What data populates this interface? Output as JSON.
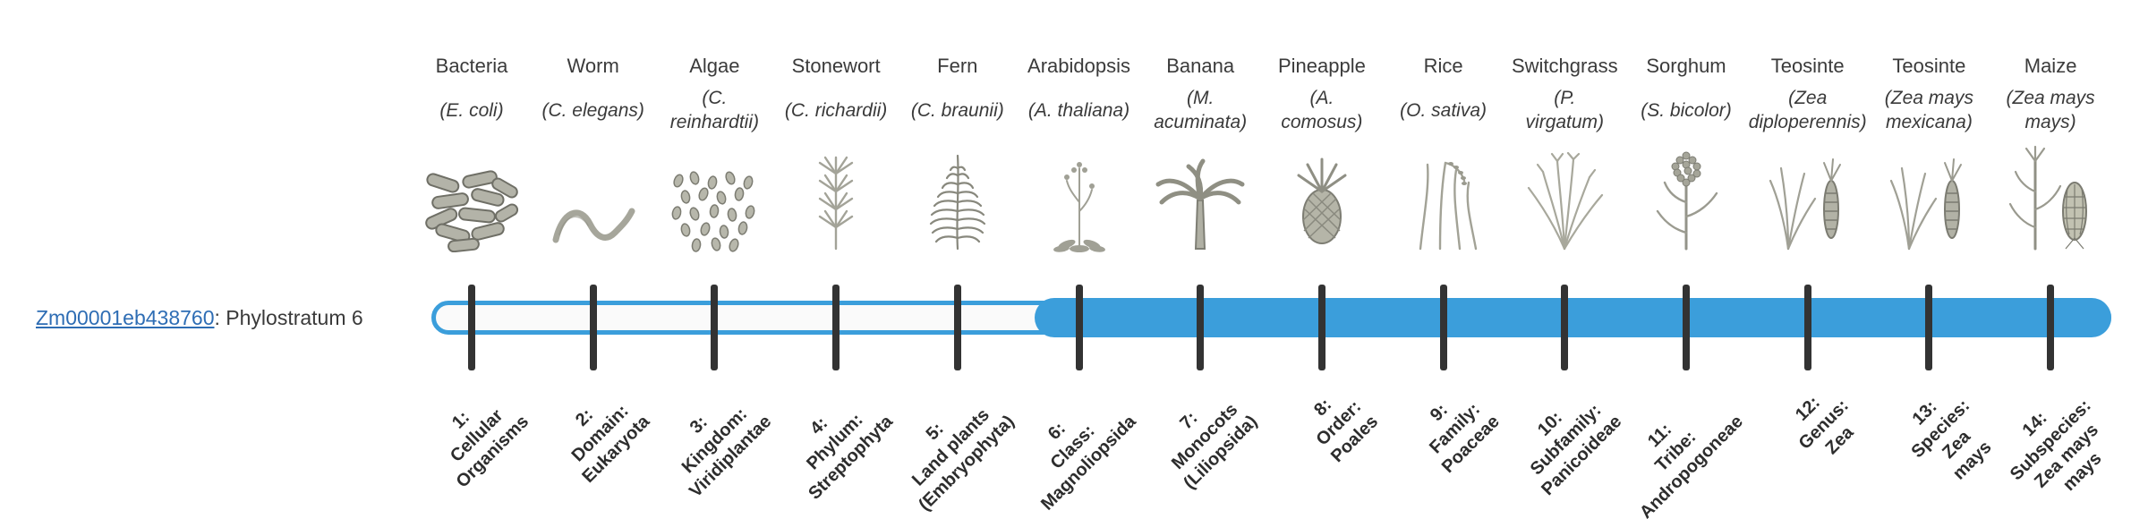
{
  "figure": {
    "background": "#ffffff"
  },
  "gene_label": {
    "link_text": "Zm00001eb438760",
    "suffix": ": Phylostratum 6",
    "link_color": "#2e6db4"
  },
  "bar": {
    "outline_color": "#3b9edb",
    "fill_color": "#3b9edb",
    "track_background": "#fafafa",
    "tick_color": "#333333",
    "fill_from_stratum": 6,
    "total_strata": 14
  },
  "columns": [
    {
      "common": "Bacteria",
      "scientific_lines": [
        "(E. coli)"
      ],
      "icon": "bacteria-icon",
      "stratum_lines": [
        "1:",
        "Cellular",
        "Organisms"
      ]
    },
    {
      "common": "Worm",
      "scientific_lines": [
        "(C. elegans)"
      ],
      "icon": "worm-icon",
      "stratum_lines": [
        "2:",
        "Domain:",
        "Eukaryota"
      ]
    },
    {
      "common": "Algae",
      "scientific_lines": [
        "(C.",
        "reinhardtii)"
      ],
      "icon": "algae-icon",
      "stratum_lines": [
        "3:",
        "Kingdom:",
        "Viridiplantae"
      ]
    },
    {
      "common": "Stonewort",
      "scientific_lines": [
        "(C. richardii)"
      ],
      "icon": "stonewort-icon",
      "stratum_lines": [
        "4:",
        "Phylum:",
        "Streptophyta"
      ]
    },
    {
      "common": "Fern",
      "scientific_lines": [
        "(C. braunii)"
      ],
      "icon": "fern-icon",
      "stratum_lines": [
        "5:",
        "Land plants",
        "(Embryophyta)"
      ]
    },
    {
      "common": "Arabidopsis",
      "scientific_lines": [
        "(A. thaliana)"
      ],
      "icon": "arabidopsis-icon",
      "stratum_lines": [
        "6:",
        "Class:",
        "Magnoliopsida"
      ]
    },
    {
      "common": "Banana",
      "scientific_lines": [
        "(M.",
        "acuminata)"
      ],
      "icon": "banana-icon",
      "stratum_lines": [
        "7:",
        "Monocots",
        "(Liliopsida)"
      ]
    },
    {
      "common": "Pineapple",
      "scientific_lines": [
        "(A.",
        "comosus)"
      ],
      "icon": "pineapple-icon",
      "stratum_lines": [
        "8:",
        "Order:",
        "Poales"
      ]
    },
    {
      "common": "Rice",
      "scientific_lines": [
        "(O. sativa)"
      ],
      "icon": "rice-icon",
      "stratum_lines": [
        "9:",
        "Family:",
        "Poaceae"
      ]
    },
    {
      "common": "Switchgrass",
      "scientific_lines": [
        "(P.",
        "virgatum)"
      ],
      "icon": "switchgrass-icon",
      "stratum_lines": [
        "10:",
        "Subfamily:",
        "Panicoideae"
      ]
    },
    {
      "common": "Sorghum",
      "scientific_lines": [
        "(S. bicolor)"
      ],
      "icon": "sorghum-icon",
      "stratum_lines": [
        "11:",
        "Tribe:",
        "Andropogoneae"
      ]
    },
    {
      "common": "Teosinte",
      "scientific_lines": [
        "(Zea",
        "diploperennis)"
      ],
      "icon": "teosinte-icon",
      "stratum_lines": [
        "12:",
        "Genus:",
        "Zea"
      ]
    },
    {
      "common": "Teosinte",
      "scientific_lines": [
        "(Zea mays",
        "mexicana)"
      ],
      "icon": "teosinte-icon",
      "stratum_lines": [
        "13:",
        "Species:",
        "Zea",
        "mays"
      ]
    },
    {
      "common": "Maize",
      "scientific_lines": [
        "(Zea mays",
        "mays)"
      ],
      "icon": "maize-icon",
      "stratum_lines": [
        "14:",
        "Subspecies:",
        "Zea mays",
        "mays"
      ]
    }
  ]
}
